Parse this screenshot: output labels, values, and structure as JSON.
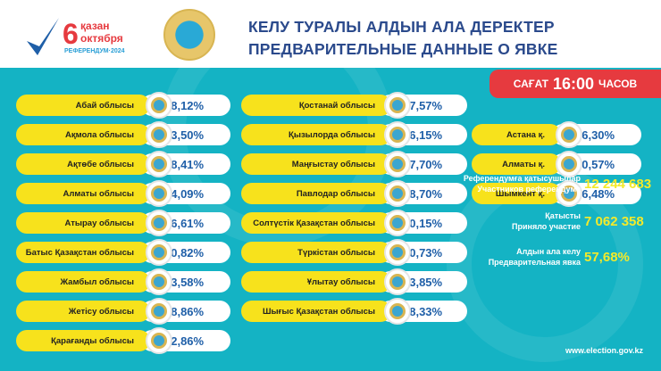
{
  "header": {
    "logo_day": "6",
    "logo_kz": "қазан",
    "logo_ru": "октября",
    "logo_sub": "РЕФЕРЕНДУМ·2024",
    "title_kz": "КЕЛУ ТУРАЛЫ АЛДЫН АЛА ДЕРЕКТЕР",
    "title_ru": "ПРЕДВАРИТЕЛЬНЫЕ ДАННЫЕ О ЯВКЕ"
  },
  "time": {
    "prefix": "САҒАТ",
    "value": "16:00",
    "suffix": "ЧАСОВ"
  },
  "regions_left": [
    {
      "name": "Абай облысы",
      "pct": "58,12%",
      "emblem": "АБАЙ"
    },
    {
      "name": "Ақмола облысы",
      "pct": "63,50%",
      "emblem": "AQMOLA"
    },
    {
      "name": "Ақтөбе облысы",
      "pct": "68,41%",
      "emblem": "Aktobe"
    },
    {
      "name": "Алматы облысы",
      "pct": "64,09%",
      "emblem": ""
    },
    {
      "name": "Атырау облысы",
      "pct": "56,61%",
      "emblem": ""
    },
    {
      "name": "Батыс Қазақстан облысы",
      "pct": "60,82%",
      "emblem": ""
    },
    {
      "name": "Жамбыл облысы",
      "pct": "53,58%",
      "emblem": ""
    },
    {
      "name": "Жетісу облысы",
      "pct": "58,86%",
      "emblem": ""
    },
    {
      "name": "Қарағанды облысы",
      "pct": "62,86%",
      "emblem": ""
    }
  ],
  "regions_mid": [
    {
      "name": "Қостанай облысы",
      "pct": "67,57%"
    },
    {
      "name": "Қызылорда облысы",
      "pct": "76,15%"
    },
    {
      "name": "Маңғыстау облысы",
      "pct": "47,70%"
    },
    {
      "name": "Павлодар облысы",
      "pct": "58,70%"
    },
    {
      "name": "Солтүстік Қазақстан облысы",
      "pct": "60,15%"
    },
    {
      "name": "Түркістан облысы",
      "pct": "70,73%"
    },
    {
      "name": "Ұлытау облысы",
      "pct": "63,85%",
      "emblem": "ULYTAU"
    },
    {
      "name": "Шығыс Қазақстан облысы",
      "pct": "68,33%"
    }
  ],
  "cities": [
    {
      "name": "Астана қ.",
      "pct": "46,30%"
    },
    {
      "name": "Алматы қ.",
      "pct": "20,57%"
    },
    {
      "name": "Шымкент қ.",
      "pct": "66,48%"
    }
  ],
  "stats": [
    {
      "kz": "Референдумға қатысушылар",
      "ru": "Участников референдума",
      "value": "12 244 683"
    },
    {
      "kz": "Қатысты",
      "ru": "Приняло участие",
      "value": "7 062 358"
    },
    {
      "kz": "Алдын ала келу",
      "ru": "Предварительная явка",
      "value": "57,68%"
    }
  ],
  "footer": {
    "url": "www.election.gov.kz"
  },
  "colors": {
    "teal": "#14b3c4",
    "yellow": "#f7e21c",
    "red": "#e63a3f",
    "title": "#2b4a8c",
    "pct": "#1f5fa8"
  }
}
